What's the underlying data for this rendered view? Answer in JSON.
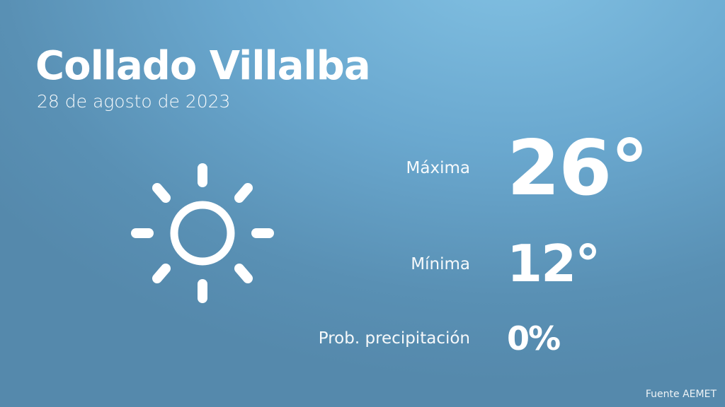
{
  "city": "Collado Villalba",
  "date": "28 de agosto de 2023",
  "weather_icon": "sun-icon",
  "max": {
    "label": "Máxima",
    "value": "26°"
  },
  "min": {
    "label": "Mínima",
    "value": "12°"
  },
  "precip": {
    "label": "Prob. precipitación",
    "value": "0%"
  },
  "source": "Fuente AEMET"
}
